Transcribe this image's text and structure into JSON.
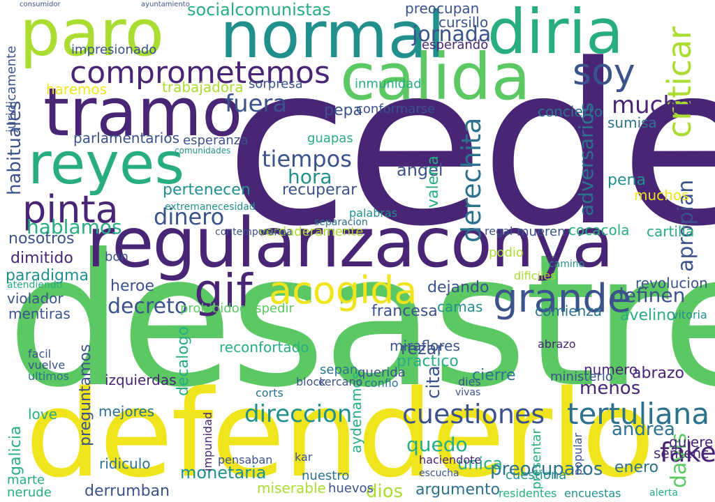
{
  "palette": {
    "purple": "#482575",
    "indigo": "#3b528b",
    "blue": "#2c728e",
    "teal": "#21908d",
    "green": "#27ad81",
    "lime": "#5cc863",
    "yellowgreen": "#aadc32",
    "yellow": "#f0e51c"
  },
  "words": [
    {
      "text": "cede",
      "color": "#482575"
    },
    {
      "text": "desastre",
      "color": "#5cc863"
    },
    {
      "text": "defenderlo",
      "color": "#f0e51c"
    },
    {
      "text": "regularizaconya",
      "color": "#482575"
    },
    {
      "text": "normal",
      "color": "#21908d"
    },
    {
      "text": "paro",
      "color": "#aadc32"
    },
    {
      "text": "diria",
      "color": "#27ad81"
    },
    {
      "text": "tramo",
      "color": "#482575"
    },
    {
      "text": "calida",
      "color": "#5cc863"
    },
    {
      "text": "reyes",
      "color": "#27ad81"
    },
    {
      "text": "comprometemos",
      "color": "#482575"
    },
    {
      "text": "soy",
      "color": "#3b528b"
    },
    {
      "text": "criticar",
      "color": "#aadc32"
    },
    {
      "text": "pinta",
      "color": "#482575"
    },
    {
      "text": "acogida",
      "color": "#f0e51c"
    },
    {
      "text": "grande",
      "color": "#3b528b"
    },
    {
      "text": "gif",
      "color": "#482575"
    },
    {
      "text": "tertuliana",
      "color": "#2c728e"
    },
    {
      "text": "cuestiones",
      "color": "#3b528b"
    },
    {
      "text": "direccion",
      "color": "#21908d"
    },
    {
      "text": "dinero",
      "color": "#3b528b"
    },
    {
      "text": "tiempos",
      "color": "#3b528b"
    },
    {
      "text": "fuera",
      "color": "#3b528b"
    },
    {
      "text": "mucha",
      "color": "#482575"
    },
    {
      "text": "jornada",
      "color": "#3b528b"
    },
    {
      "text": "socialcomunistas",
      "color": "#27ad81"
    },
    {
      "text": "decreto",
      "color": "#3b528b"
    },
    {
      "text": "hablamos",
      "color": "#27ad81"
    },
    {
      "text": "fake",
      "color": "#482575"
    },
    {
      "text": "hora",
      "color": "#21908d"
    },
    {
      "text": "derechita",
      "color": "#2c728e"
    },
    {
      "text": "adversarios",
      "color": "#2c728e"
    },
    {
      "text": "apropian",
      "color": "#3b528b"
    },
    {
      "text": "definen",
      "color": "#3b528b"
    },
    {
      "text": "preocuparos",
      "color": "#2c728e"
    },
    {
      "text": "monetaria",
      "color": "#21908d"
    },
    {
      "text": "derrumban",
      "color": "#3b528b"
    },
    {
      "text": "pertenecen",
      "color": "#21908d"
    },
    {
      "text": "parlamentarios",
      "color": "#3b528b"
    },
    {
      "text": "habituales",
      "color": "#3b528b"
    },
    {
      "text": "impresionado",
      "color": "#3b528b"
    },
    {
      "text": "nosotros",
      "color": "#3b528b"
    },
    {
      "text": "dimitido",
      "color": "#482575"
    },
    {
      "text": "paradigma",
      "color": "#21908d"
    },
    {
      "text": "heroe",
      "color": "#3b528b"
    },
    {
      "text": "mejores",
      "color": "#2c728e"
    },
    {
      "text": "preguntamos",
      "color": "#3b528b"
    },
    {
      "text": "ridiculo",
      "color": "#2c728e"
    },
    {
      "text": "miserable",
      "color": "#aadc32"
    },
    {
      "text": "argumento",
      "color": "#2c728e"
    },
    {
      "text": "dios",
      "color": "#aadc32"
    },
    {
      "text": "quedo",
      "color": "#27ad81"
    },
    {
      "text": "unica",
      "color": "#27ad81"
    },
    {
      "text": "andrea",
      "color": "#2c728e"
    },
    {
      "text": "davis",
      "color": "#5cc863"
    },
    {
      "text": "quiere",
      "color": "#482575"
    },
    {
      "text": "sentenc",
      "color": "#482575"
    },
    {
      "text": "menos",
      "color": "#482575"
    },
    {
      "text": "rezar",
      "color": "#3b528b"
    },
    {
      "text": "practico",
      "color": "#27ad81"
    },
    {
      "text": "cierre",
      "color": "#2c728e"
    },
    {
      "text": "abrazo",
      "color": "#482575"
    },
    {
      "text": "numero",
      "color": "#482575"
    },
    {
      "text": "ministerio",
      "color": "#3b528b"
    },
    {
      "text": "miraflores",
      "color": "#3b528b"
    },
    {
      "text": "reconfortado",
      "color": "#27ad81"
    },
    {
      "text": "izquierdas",
      "color": "#482575"
    },
    {
      "text": "decalogo",
      "color": "#27ad81"
    },
    {
      "text": "prohibidodespedir",
      "color": "#5cc863"
    },
    {
      "text": "francesa",
      "color": "#3b528b"
    },
    {
      "text": "dejando",
      "color": "#3b528b"
    },
    {
      "text": "camas",
      "color": "#21908d"
    },
    {
      "text": "comienza",
      "color": "#2c728e"
    },
    {
      "text": "avelino",
      "color": "#27ad81"
    },
    {
      "text": "revolucion",
      "color": "#3b528b"
    },
    {
      "text": "cartilla",
      "color": "#27ad81"
    },
    {
      "text": "cocacola",
      "color": "#27ad81"
    },
    {
      "text": "verdaderamente",
      "color": "#aadc32"
    },
    {
      "text": "pena",
      "color": "#21908d"
    },
    {
      "text": "muchos",
      "color": "#f0e51c"
    },
    {
      "text": "angel",
      "color": "#3b528b"
    },
    {
      "text": "recuperar",
      "color": "#3b528b"
    },
    {
      "text": "valeria",
      "color": "#27ad81"
    },
    {
      "text": "pepa",
      "color": "#3b528b"
    },
    {
      "text": "conformarse",
      "color": "#3b528b"
    },
    {
      "text": "trabajadora",
      "color": "#aadc32"
    },
    {
      "text": "haremos",
      "color": "#f0e51c"
    },
    {
      "text": "esperanza",
      "color": "#3b528b"
    },
    {
      "text": "preocupan",
      "color": "#3b528b"
    },
    {
      "text": "concierto",
      "color": "#2c728e"
    },
    {
      "text": "sumisa",
      "color": "#2c728e"
    },
    {
      "text": "esperando",
      "color": "#482575"
    },
    {
      "text": "cursillo",
      "color": "#3b528b"
    },
    {
      "text": "sorpresa",
      "color": "#3b528b"
    },
    {
      "text": "inmunidad",
      "color": "#27ad81"
    },
    {
      "text": "violador",
      "color": "#3b528b"
    },
    {
      "text": "mentiras",
      "color": "#3b528b"
    },
    {
      "text": "cuestiona",
      "color": "#21908d"
    },
    {
      "text": "galicia",
      "color": "#27ad81"
    },
    {
      "text": "love",
      "color": "#27ad81"
    },
    {
      "text": "bon",
      "color": "#3b528b"
    },
    {
      "text": "guapas",
      "color": "#27ad81"
    },
    {
      "text": "palabras",
      "color": "#21908d"
    },
    {
      "text": "cita",
      "color": "#3b528b"
    },
    {
      "text": "aydenamos",
      "color": "#27ad81"
    },
    {
      "text": "sepan",
      "color": "#2c728e"
    },
    {
      "text": "cercano",
      "color": "#3b528b"
    },
    {
      "text": "juridicamente",
      "color": "#3b528b"
    },
    {
      "text": "atendiendo",
      "color": "#27ad81"
    },
    {
      "text": "marte",
      "color": "#27ad81"
    },
    {
      "text": "nerude",
      "color": "#27ad81"
    },
    {
      "text": "enero",
      "color": "#2c728e"
    },
    {
      "text": "haciendote",
      "color": "#482575"
    },
    {
      "text": "escucha",
      "color": "#3b528b"
    },
    {
      "text": "alerta",
      "color": "#27ad81"
    },
    {
      "text": "contemporanea",
      "color": "#3b528b"
    },
    {
      "text": "extremanecesidad",
      "color": "#21908d"
    },
    {
      "text": "comunidades",
      "color": "#21908d"
    },
    {
      "text": "separacion",
      "color": "#2c728e"
    },
    {
      "text": "dificiles",
      "color": "#aadc32"
    },
    {
      "text": "nuestro",
      "color": "#2c728e"
    },
    {
      "text": "podio",
      "color": "#aadc32"
    },
    {
      "text": "mueren",
      "color": "#3b528b"
    },
    {
      "text": "regal",
      "color": "#3b528b"
    },
    {
      "text": "camino",
      "color": "#21908d"
    },
    {
      "text": "abrazo",
      "color": "#482575"
    },
    {
      "text": "vitoria",
      "color": "#21908d"
    },
    {
      "text": "kar",
      "color": "#3b528b"
    },
    {
      "text": "huevos",
      "color": "#3b528b"
    },
    {
      "text": "block",
      "color": "#3b528b"
    },
    {
      "text": "corts",
      "color": "#2c728e"
    },
    {
      "text": "querida",
      "color": "#3b528b"
    },
    {
      "text": "confio",
      "color": "#2c728e"
    },
    {
      "text": "dies",
      "color": "#3b528b"
    },
    {
      "text": "vivas",
      "color": "#3b528b"
    },
    {
      "text": "presentar",
      "color": "#27ad81"
    },
    {
      "text": "popular",
      "color": "#3b528b"
    },
    {
      "text": "residentes",
      "color": "#27ad81"
    },
    {
      "text": "encuestas",
      "color": "#21908d"
    },
    {
      "text": "pensaban",
      "color": "#3b528b"
    },
    {
      "text": "impunidad",
      "color": "#482575"
    },
    {
      "text": "facil",
      "color": "#3b528b"
    },
    {
      "text": "vuelve",
      "color": "#3b528b"
    },
    {
      "text": "ultimos",
      "color": "#2c728e"
    },
    {
      "text": "ayuntamiento",
      "color": "#3b528b"
    },
    {
      "text": "consumidor",
      "color": "#3b528b"
    }
  ]
}
